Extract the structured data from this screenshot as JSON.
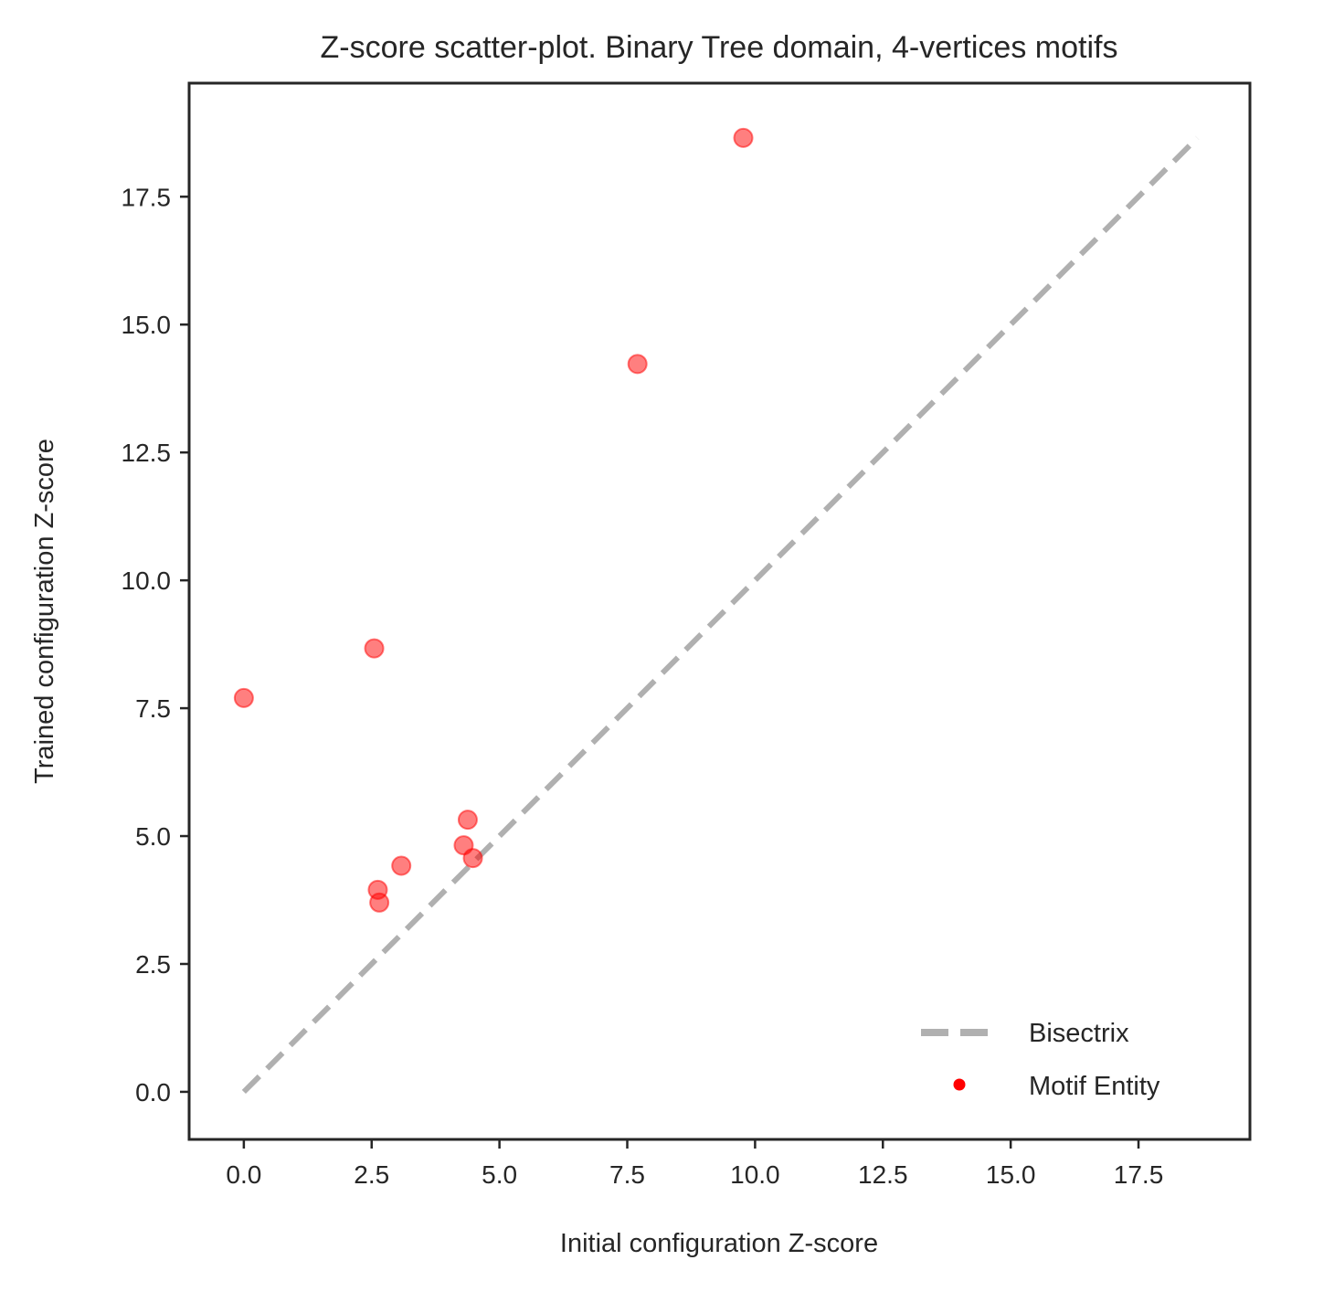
{
  "chart_data": {
    "type": "scatter",
    "title": "Z-score scatter-plot. Binary Tree domain, 4-vertices motifs",
    "xlabel": "Initial configuration Z-score",
    "ylabel": "Trained configuration Z-score",
    "xlim": [
      -1.07,
      19.68
    ],
    "ylim": [
      -0.93,
      19.72
    ],
    "x_ticks": [
      "0.0",
      "2.5",
      "5.0",
      "7.5",
      "10.0",
      "12.5",
      "15.0",
      "17.5"
    ],
    "y_ticks": [
      "0.0",
      "2.5",
      "5.0",
      "7.5",
      "10.0",
      "12.5",
      "15.0",
      "17.5"
    ],
    "grid": false,
    "legend_position": "lower-right",
    "series": [
      {
        "name": "Bisectrix",
        "kind": "dashed-line",
        "color": "#b0b0b0",
        "x": [
          0,
          18.65
        ],
        "y": [
          0,
          18.65
        ]
      },
      {
        "name": "Motif Entity",
        "kind": "points",
        "color": "#ff0000",
        "x": [
          0.0,
          2.55,
          2.62,
          2.65,
          3.08,
          4.3,
          4.38,
          4.48,
          7.7,
          9.77
        ],
        "y": [
          7.7,
          8.67,
          3.95,
          3.7,
          4.42,
          4.82,
          5.32,
          4.57,
          14.23,
          18.65
        ]
      }
    ]
  }
}
